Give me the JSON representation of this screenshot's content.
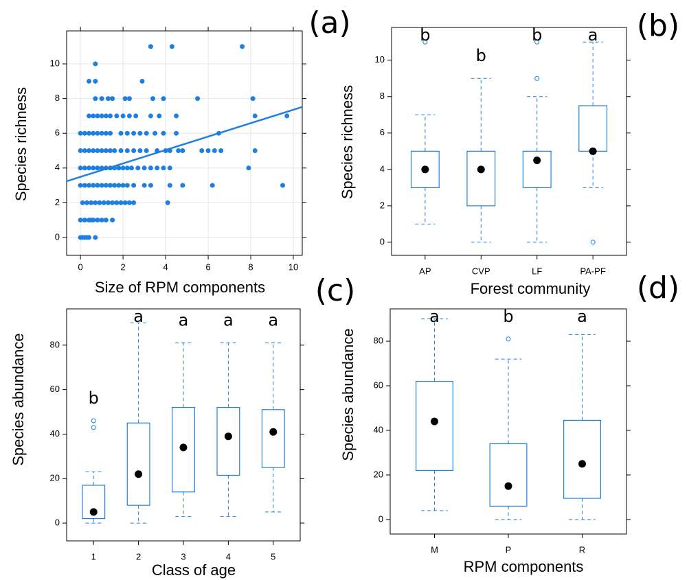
{
  "chart_data": [
    {
      "type": "scatter",
      "panel_label": "(a)",
      "x_label": "Size of RPM components",
      "y_label": "Species richness",
      "color": "#1f7fe0",
      "grid": true,
      "xlim": [
        -0.65,
        10.42
      ],
      "ylim": [
        -1.03,
        11.9
      ],
      "xticks": [
        0,
        2,
        4,
        6,
        8,
        10
      ],
      "yticks": [
        0,
        2,
        4,
        6,
        8,
        10
      ],
      "x": [
        0,
        0.1,
        0.2,
        0.3,
        0.4,
        0.7,
        0,
        0.2,
        0.4,
        0.5,
        0.6,
        0.8,
        1,
        1.2,
        1.5,
        0.1,
        0.3,
        0.5,
        0.7,
        0.9,
        1.1,
        1.3,
        1.5,
        1.7,
        1.9,
        2.1,
        2.3,
        2.5,
        4.1,
        0,
        0.2,
        0.4,
        0.6,
        0.8,
        1,
        1.2,
        1.4,
        1.6,
        1.8,
        2,
        2.2,
        2.5,
        3,
        3.3,
        4.2,
        4.8,
        6.2,
        9.5,
        0,
        0.2,
        0.4,
        0.6,
        0.8,
        1,
        1.2,
        1.4,
        1.6,
        1.8,
        2,
        2.2,
        2.4,
        2.7,
        3,
        3.3,
        3.6,
        3.9,
        4.2,
        7.9,
        0,
        0.2,
        0.4,
        0.6,
        0.8,
        1,
        1.2,
        1.4,
        1.6,
        1.9,
        2.2,
        2.5,
        2.8,
        3.1,
        3.6,
        4,
        4.2,
        4.6,
        4.8,
        5.7,
        6,
        6.3,
        6.6,
        8.2,
        0,
        0.2,
        0.4,
        0.6,
        0.8,
        1,
        1.2,
        1.4,
        1.9,
        2.2,
        2.5,
        2.8,
        3.1,
        3.5,
        3.9,
        4.5,
        6.5,
        0.4,
        0.6,
        0.8,
        1,
        1.2,
        1.4,
        1.7,
        2,
        2.3,
        2.6,
        3.3,
        3.7,
        4.5,
        8.2,
        9.7,
        0.7,
        1,
        1.3,
        1.5,
        2.1,
        2.3,
        3.4,
        3.9,
        5.5,
        8.1,
        0.4,
        0.7,
        2.9,
        0.7,
        3.3,
        4.3,
        7.6
      ],
      "values": [
        0,
        0,
        0,
        0,
        0,
        0,
        1,
        1,
        1,
        1,
        1,
        1,
        1,
        1,
        1,
        2,
        2,
        2,
        2,
        2,
        2,
        2,
        2,
        2,
        2,
        2,
        2,
        2,
        2,
        3,
        3,
        3,
        3,
        3,
        3,
        3,
        3,
        3,
        3,
        3,
        3,
        3,
        3,
        3,
        3,
        3,
        3,
        3,
        4,
        4,
        4,
        4,
        4,
        4,
        4,
        4,
        4,
        4,
        4,
        4,
        4,
        4,
        4,
        4,
        4,
        4,
        4,
        4,
        5,
        5,
        5,
        5,
        5,
        5,
        5,
        5,
        5,
        5,
        5,
        5,
        5,
        5,
        5,
        5,
        5,
        5,
        5,
        5,
        5,
        5,
        5,
        5,
        6,
        6,
        6,
        6,
        6,
        6,
        6,
        6,
        6,
        6,
        6,
        6,
        6,
        6,
        6,
        6,
        6,
        7,
        7,
        7,
        7,
        7,
        7,
        7,
        7,
        7,
        7,
        7,
        7,
        7,
        7,
        7,
        8,
        8,
        8,
        8,
        8,
        8,
        8,
        8,
        8,
        8,
        9,
        9,
        9,
        10,
        11,
        11,
        11
      ],
      "fit": {
        "x": [
          -0.65,
          10.42
        ],
        "values": [
          3.24,
          7.52
        ]
      }
    },
    {
      "type": "box",
      "panel_label": "(b)",
      "x_label": "Forest community",
      "y_label": "Species richness",
      "color": "#1f7fe0",
      "ylim": [
        -0.72,
        11.8
      ],
      "yticks": [
        0,
        2,
        4,
        6,
        8,
        10
      ],
      "categories": [
        "AP",
        "CVP",
        "LF",
        "PA-PF"
      ],
      "whisker_low": [
        1,
        0,
        0,
        3
      ],
      "q1": [
        3,
        2,
        3,
        5
      ],
      "median": [
        4,
        4,
        4.5,
        5
      ],
      "q3": [
        5,
        5,
        5,
        7.5
      ],
      "whisker_high": [
        7,
        9,
        8,
        11
      ],
      "outliers": [
        [
          11
        ],
        [],
        [
          9,
          11
        ],
        [
          0
        ]
      ],
      "group_letters": [
        "b",
        "b",
        "b",
        "a"
      ]
    },
    {
      "type": "box",
      "panel_label": "(c)",
      "x_label": "Class of age",
      "y_label": "Species abundance",
      "color": "#1f7fe0",
      "ylim": [
        -8,
        96.3
      ],
      "yticks": [
        0,
        20,
        40,
        60,
        80
      ],
      "categories": [
        "1",
        "2",
        "3",
        "4",
        "5"
      ],
      "whisker_low": [
        0,
        0,
        3,
        3,
        5
      ],
      "q1": [
        2,
        8,
        14,
        21.5,
        25
      ],
      "median": [
        5,
        22,
        34,
        39,
        41
      ],
      "q3": [
        17,
        45,
        52,
        52,
        51
      ],
      "whisker_high": [
        23,
        90,
        81,
        81,
        81
      ],
      "outliers": [
        [
          43,
          46
        ],
        [],
        [],
        [],
        []
      ],
      "group_letters": [
        "b",
        "a",
        "a",
        "a",
        "a"
      ]
    },
    {
      "type": "box",
      "panel_label": "(d)",
      "x_label": "RPM components",
      "y_label": "Species abundance",
      "color": "#1f7fe0",
      "ylim": [
        -6.5,
        94.5
      ],
      "yticks": [
        0,
        20,
        40,
        60,
        80
      ],
      "categories": [
        "M",
        "P",
        "R"
      ],
      "whisker_low": [
        4,
        0,
        0
      ],
      "q1": [
        22,
        6,
        9.5
      ],
      "median": [
        44,
        15,
        25
      ],
      "q3": [
        62,
        34,
        44.5
      ],
      "whisker_high": [
        90,
        72,
        83
      ],
      "outliers": [
        [],
        [
          81
        ],
        []
      ],
      "group_letters": [
        "a",
        "b",
        "a"
      ]
    }
  ]
}
